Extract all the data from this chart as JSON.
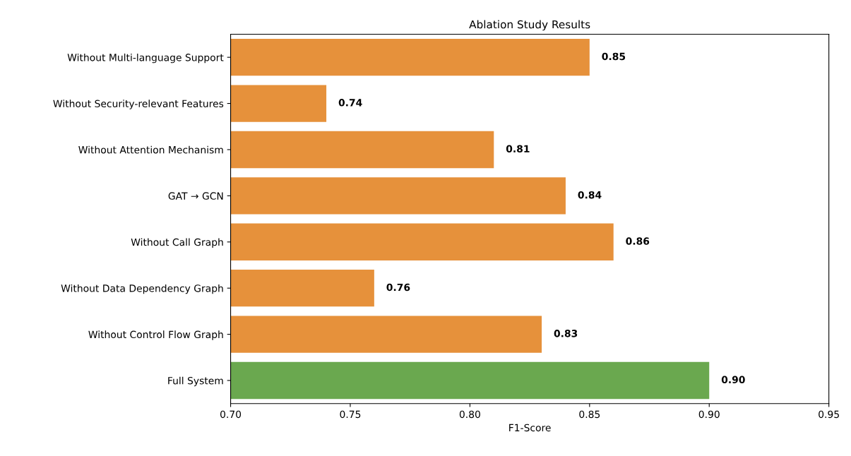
{
  "chart_data": {
    "type": "bar",
    "orientation": "horizontal",
    "title": "Ablation Study Results",
    "xlabel": "F1-Score",
    "categories": [
      "Without Multi-language Support",
      "Without Security-relevant Features",
      "Without Attention Mechanism",
      "GAT → GCN",
      "Without Call Graph",
      "Without Data Dependency Graph",
      "Without Control Flow Graph",
      "Full System"
    ],
    "values": [
      0.85,
      0.74,
      0.81,
      0.84,
      0.86,
      0.76,
      0.83,
      0.9
    ],
    "value_labels": [
      "0.85",
      "0.74",
      "0.81",
      "0.84",
      "0.86",
      "0.76",
      "0.83",
      "0.90"
    ],
    "colors": [
      "#e6913b",
      "#e6913b",
      "#e6913b",
      "#e6913b",
      "#e6913b",
      "#e6913b",
      "#e6913b",
      "#6aa84f"
    ],
    "xlim": [
      0.7,
      0.95
    ],
    "xticks": [
      {
        "value": 0.7,
        "label": "0.70"
      },
      {
        "value": 0.75,
        "label": "0.75"
      },
      {
        "value": 0.8,
        "label": "0.80"
      },
      {
        "value": 0.85,
        "label": "0.85"
      },
      {
        "value": 0.9,
        "label": "0.90"
      },
      {
        "value": 0.95,
        "label": "0.95"
      }
    ]
  }
}
